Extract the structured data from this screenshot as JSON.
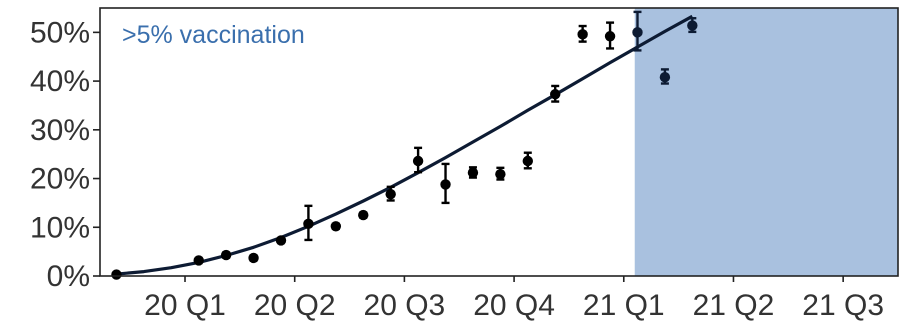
{
  "chart_data": {
    "type": "scatter",
    "title": "",
    "xlabel": "",
    "ylabel": "",
    "x_tick_labels": [
      "20 Q1",
      "20 Q2",
      "20 Q3",
      "20 Q4",
      "21 Q1",
      "21 Q2",
      "21 Q3"
    ],
    "x_tick_positions": [
      2.5,
      6.5,
      10.5,
      14.5,
      18.5,
      22.5,
      26.5
    ],
    "y_tick_labels": [
      "0%",
      "10%",
      "20%",
      "30%",
      "40%",
      "50%"
    ],
    "y_tick_values": [
      0,
      10,
      20,
      30,
      40,
      50
    ],
    "xlim": [
      -0.6,
      28.5
    ],
    "ylim": [
      0,
      55
    ],
    "grid": false,
    "shaded_region": {
      "x_start": 18.9,
      "x_end": 28.5,
      "label": ">5% vaccination",
      "color": "#a9c1df",
      "label_color": "#3a6fad"
    },
    "points": [
      {
        "x": 0,
        "y": 0.3,
        "err_low": 0.2,
        "err_high": 0.2
      },
      {
        "x": 3,
        "y": 3.2,
        "err_low": 0.4,
        "err_high": 0.4
      },
      {
        "x": 4,
        "y": 4.3,
        "err_low": 0.5,
        "err_high": 0.5
      },
      {
        "x": 5,
        "y": 3.7,
        "err_low": 0.5,
        "err_high": 0.5
      },
      {
        "x": 6,
        "y": 7.3,
        "err_low": 0.4,
        "err_high": 0.4
      },
      {
        "x": 7,
        "y": 10.7,
        "err_low": 3.3,
        "err_high": 3.7
      },
      {
        "x": 8,
        "y": 10.2,
        "err_low": 0.5,
        "err_high": 0.5
      },
      {
        "x": 9,
        "y": 12.5,
        "err_low": 0.5,
        "err_high": 0.5
      },
      {
        "x": 10,
        "y": 16.8,
        "err_low": 1.3,
        "err_high": 1.5
      },
      {
        "x": 11,
        "y": 23.6,
        "err_low": 2.3,
        "err_high": 2.7
      },
      {
        "x": 12,
        "y": 18.8,
        "err_low": 3.8,
        "err_high": 4.2
      },
      {
        "x": 13,
        "y": 21.2,
        "err_low": 1.0,
        "err_high": 1.1
      },
      {
        "x": 14,
        "y": 20.9,
        "err_low": 1.1,
        "err_high": 1.3
      },
      {
        "x": 15,
        "y": 23.6,
        "err_low": 1.5,
        "err_high": 1.7
      },
      {
        "x": 16,
        "y": 37.3,
        "err_low": 1.5,
        "err_high": 1.7
      },
      {
        "x": 17,
        "y": 49.6,
        "err_low": 1.5,
        "err_high": 1.7
      },
      {
        "x": 18,
        "y": 49.2,
        "err_low": 2.5,
        "err_high": 2.8
      },
      {
        "x": 19,
        "y": 50.0,
        "err_low": 3.7,
        "err_high": 4.2
      },
      {
        "x": 20,
        "y": 40.8,
        "err_low": 1.3,
        "err_high": 1.6
      },
      {
        "x": 21,
        "y": 51.4,
        "err_low": 1.3,
        "err_high": 1.5
      }
    ],
    "point_color_default": "#000000",
    "point_color_shaded": "#0d1b33",
    "fit_line": {
      "type": "logistic",
      "color": "#0d1b33",
      "x": [
        0,
        1,
        2,
        3,
        4,
        5,
        6,
        7,
        8,
        9,
        10,
        11,
        12,
        13,
        14,
        15,
        16,
        17,
        18,
        19,
        20,
        21
      ],
      "y": [
        0.4,
        0.9,
        1.7,
        2.8,
        4.2,
        5.9,
        7.9,
        10.2,
        12.7,
        15.4,
        18.2,
        21.2,
        24.3,
        27.5,
        30.7,
        34.0,
        37.2,
        40.5,
        43.8,
        47.0,
        50.2,
        53.3
      ]
    }
  }
}
